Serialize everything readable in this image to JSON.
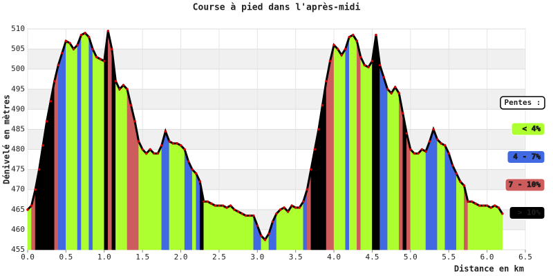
{
  "chart_data": {
    "type": "area",
    "title": "Course à pied dans l'après-midi",
    "x_label": "Distance en km",
    "y_label": "Dénivelé en mètres",
    "legend_title": "Pentes :",
    "slope_classes": [
      {
        "label": "< 4%",
        "color": "#adff2f",
        "max": 4
      },
      {
        "label": "4 - 7%",
        "color": "#4169e1",
        "max": 7
      },
      {
        "label": "7 - 10%",
        "color": "#cd5c5c",
        "max": 10
      },
      {
        "label": "> 10%",
        "color": "#000000"
      }
    ],
    "line_color": "#000000",
    "point_color": "#cc0000",
    "grid": true,
    "xlim": [
      0,
      6.5
    ],
    "xticks": [
      {
        "value": 0,
        "label": "0.0"
      },
      0.5,
      {
        "value": 1,
        "label": "1.0"
      },
      1.5,
      {
        "value": 2,
        "label": "2.0"
      },
      2.5,
      {
        "value": 3,
        "label": "3.0"
      },
      3.5,
      {
        "value": 4,
        "label": "4.0"
      },
      4.5,
      {
        "value": 5,
        "label": "5.0"
      },
      5.5,
      {
        "value": 6,
        "label": "6.0"
      },
      6.5
    ],
    "ylim": [
      455,
      510
    ],
    "yticks": [
      455,
      460,
      465,
      470,
      475,
      480,
      485,
      490,
      495,
      500,
      505,
      510
    ],
    "x": [
      0,
      0.05,
      0.1,
      0.15,
      0.2,
      0.25,
      0.3,
      0.35,
      0.4,
      0.45,
      0.5,
      0.55,
      0.6,
      0.65,
      0.7,
      0.75,
      0.8,
      0.85,
      0.9,
      0.95,
      1,
      1.05,
      1.1,
      1.15,
      1.2,
      1.25,
      1.3,
      1.35,
      1.4,
      1.45,
      1.5,
      1.55,
      1.6,
      1.65,
      1.7,
      1.75,
      1.8,
      1.85,
      1.9,
      1.95,
      2,
      2.05,
      2.1,
      2.15,
      2.2,
      2.25,
      2.3,
      2.35,
      2.4,
      2.45,
      2.5,
      2.55,
      2.6,
      2.65,
      2.7,
      2.75,
      2.8,
      2.85,
      2.9,
      2.95,
      3,
      3.05,
      3.1,
      3.15,
      3.2,
      3.25,
      3.3,
      3.35,
      3.4,
      3.45,
      3.5,
      3.55,
      3.6,
      3.65,
      3.7,
      3.75,
      3.8,
      3.85,
      3.9,
      3.95,
      4,
      4.05,
      4.1,
      4.15,
      4.2,
      4.25,
      4.3,
      4.35,
      4.4,
      4.45,
      4.5,
      4.55,
      4.6,
      4.65,
      4.7,
      4.75,
      4.8,
      4.85,
      4.9,
      4.95,
      5,
      5.05,
      5.1,
      5.15,
      5.2,
      5.25,
      5.3,
      5.35,
      5.4,
      5.45,
      5.5,
      5.55,
      5.6,
      5.65,
      5.7,
      5.75,
      5.8,
      5.85,
      5.9,
      5.95,
      6,
      6.05,
      6.1,
      6.15,
      6.2
    ],
    "y": [
      465,
      466,
      470,
      475,
      481,
      487,
      492,
      497,
      501,
      504,
      507,
      506.5,
      505,
      506,
      508.5,
      509,
      508,
      505,
      503,
      502.5,
      502,
      509.5,
      505,
      497,
      495,
      496,
      495,
      491,
      487,
      482,
      480,
      479,
      480,
      479,
      479,
      481,
      484.5,
      482,
      481.5,
      481.5,
      481,
      480,
      477,
      475,
      474,
      472,
      467,
      467,
      466.5,
      466,
      466,
      466,
      465.5,
      466,
      465,
      464.5,
      464,
      463.5,
      463.5,
      463.5,
      461,
      458.5,
      457.5,
      459,
      462,
      464,
      465,
      465.5,
      464.5,
      466,
      465.5,
      465.5,
      467,
      470,
      475,
      480,
      485,
      491,
      497,
      502,
      506,
      505,
      503.5,
      505,
      508,
      508.5,
      507,
      503,
      501,
      500.5,
      502,
      508.5,
      501,
      498,
      495,
      494,
      495.5,
      494,
      489,
      484,
      480,
      479,
      479,
      480,
      479.5,
      482,
      485,
      482.5,
      481.5,
      481,
      479,
      476,
      474,
      472,
      471,
      467,
      467,
      466.5,
      466,
      466,
      466,
      465.5,
      466,
      465.5,
      464
    ]
  }
}
